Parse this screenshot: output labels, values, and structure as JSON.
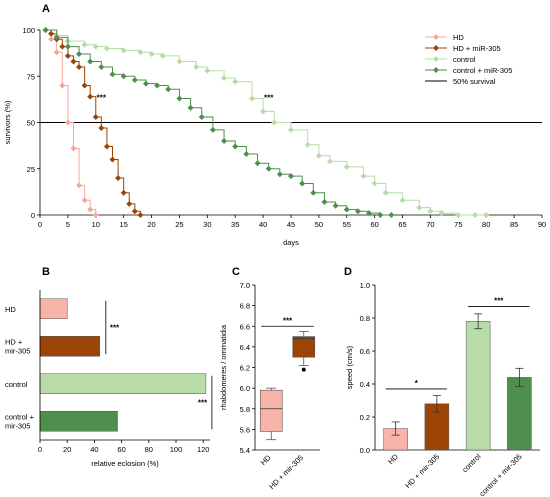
{
  "chart_data": [
    {
      "panel": "A",
      "type": "line",
      "xlabel": "days",
      "ylabel": "survivors (%)",
      "xlim": [
        0,
        90
      ],
      "ylim": [
        0,
        100
      ],
      "xticks": [
        0,
        5,
        10,
        15,
        20,
        25,
        30,
        35,
        40,
        45,
        50,
        55,
        60,
        65,
        70,
        75,
        80,
        85,
        90
      ],
      "yticks": [
        0,
        25,
        50,
        75,
        100
      ],
      "reference_line": {
        "y": 50,
        "label": "50% survival",
        "color": "#000000"
      },
      "legend": "top-right",
      "series": [
        {
          "name": "HD",
          "color": "#f4a89c",
          "marker": "diamond",
          "x": [
            1,
            2,
            3,
            4,
            5,
            6,
            7,
            8,
            9,
            10
          ],
          "y": [
            100,
            95,
            88,
            70,
            50,
            36,
            16,
            8,
            3,
            0
          ]
        },
        {
          "name": "HD + miR-305",
          "color": "#9c4406",
          "marker": "diamond",
          "x": [
            1,
            2,
            3,
            4,
            5,
            6,
            7,
            8,
            9,
            10,
            11,
            12,
            13,
            14,
            15,
            16,
            17,
            18
          ],
          "y": [
            100,
            98,
            95,
            91,
            86,
            83,
            80,
            70,
            64,
            53,
            47,
            37,
            30,
            20,
            12,
            6,
            2,
            0
          ]
        },
        {
          "name": "control",
          "color": "#b8dca8",
          "marker": "diamond",
          "x": [
            1,
            3,
            5,
            8,
            10,
            12,
            15,
            18,
            20,
            22,
            25,
            28,
            30,
            33,
            35,
            38,
            40,
            42,
            45,
            48,
            50,
            52,
            55,
            58,
            60,
            62,
            65,
            68,
            70,
            72,
            75,
            78,
            80
          ],
          "y": [
            100,
            97,
            94,
            92,
            91,
            90,
            89,
            88,
            87,
            86,
            83,
            80,
            78,
            74,
            72,
            63,
            56,
            50,
            46,
            38,
            32,
            29,
            26,
            21,
            17,
            12,
            8,
            4,
            2,
            1,
            0,
            0,
            0
          ]
        },
        {
          "name": "control + miR-305",
          "color": "#4e8f4e",
          "marker": "diamond",
          "x": [
            1,
            3,
            5,
            7,
            9,
            11,
            13,
            15,
            17,
            19,
            21,
            23,
            25,
            27,
            29,
            31,
            33,
            35,
            37,
            39,
            41,
            43,
            45,
            47,
            49,
            51,
            53,
            55,
            57,
            59,
            61,
            63
          ],
          "y": [
            100,
            96,
            91,
            87,
            83,
            80,
            76,
            75,
            73,
            71,
            70,
            68,
            63,
            58,
            53,
            46,
            40,
            37,
            33,
            28,
            25,
            22,
            21,
            17,
            12,
            7,
            5,
            3,
            2,
            1,
            0,
            0
          ]
        }
      ],
      "annotations": [
        {
          "text": "***",
          "x": 11,
          "y": 62
        },
        {
          "text": "***",
          "x": 41,
          "y": 62
        }
      ]
    },
    {
      "panel": "B",
      "type": "bar",
      "orientation": "horizontal",
      "xlabel": "relative eclosion (%)",
      "xlim": [
        0,
        125
      ],
      "xticks": [
        0,
        20,
        40,
        60,
        80,
        100,
        120
      ],
      "categories": [
        "HD",
        "HD +\nmir-305",
        "control",
        "control +\nmir-305"
      ],
      "values": [
        20,
        44,
        122,
        57
      ],
      "colors": [
        "#f8b4a8",
        "#9c4406",
        "#b8dca8",
        "#4e8f4e"
      ],
      "annotations": [
        {
          "text": "***",
          "between": [
            "HD",
            "HD +\nmir-305"
          ]
        },
        {
          "text": "***",
          "between": [
            "control",
            "control +\nmir-305"
          ]
        }
      ]
    },
    {
      "panel": "C",
      "type": "box",
      "ylabel": "rhabdomeres / ommatidia",
      "ylim": [
        5.4,
        7.0
      ],
      "yticks": [
        5.4,
        5.6,
        5.8,
        6.0,
        6.2,
        6.4,
        6.6,
        6.8,
        7.0
      ],
      "categories": [
        "HD",
        "HD + mir-305"
      ],
      "boxes": [
        {
          "name": "HD",
          "color": "#f8b4a8",
          "whisker_low": 5.5,
          "q1": 5.58,
          "median": 5.8,
          "q3": 5.98,
          "whisker_high": 6.0
        },
        {
          "name": "HD + mir-305",
          "color": "#9c4406",
          "whisker_low": 6.22,
          "q1": 6.3,
          "median": 6.48,
          "q3": 6.5,
          "whisker_high": 6.55,
          "outliers": [
            6.18
          ]
        }
      ],
      "annotations": [
        {
          "text": "***",
          "between": [
            "HD",
            "HD + mir-305"
          ]
        }
      ]
    },
    {
      "panel": "D",
      "type": "bar",
      "ylabel": "speed (cm/s)",
      "ylim": [
        0,
        1.0
      ],
      "yticks": [
        0,
        0.2,
        0.4,
        0.6,
        0.8,
        1.0
      ],
      "categories": [
        "HD",
        "HD + mir-305",
        "control",
        "control + mir-305"
      ],
      "values": [
        0.13,
        0.28,
        0.78,
        0.44
      ],
      "errors": [
        0.04,
        0.05,
        0.045,
        0.055
      ],
      "colors": [
        "#f8b4a8",
        "#9c4406",
        "#b8dca8",
        "#4e8f4e"
      ],
      "annotations": [
        {
          "text": "*",
          "between": [
            "HD",
            "HD + mir-305"
          ]
        },
        {
          "text": "***",
          "between": [
            "control",
            "control + mir-305"
          ]
        }
      ]
    }
  ]
}
